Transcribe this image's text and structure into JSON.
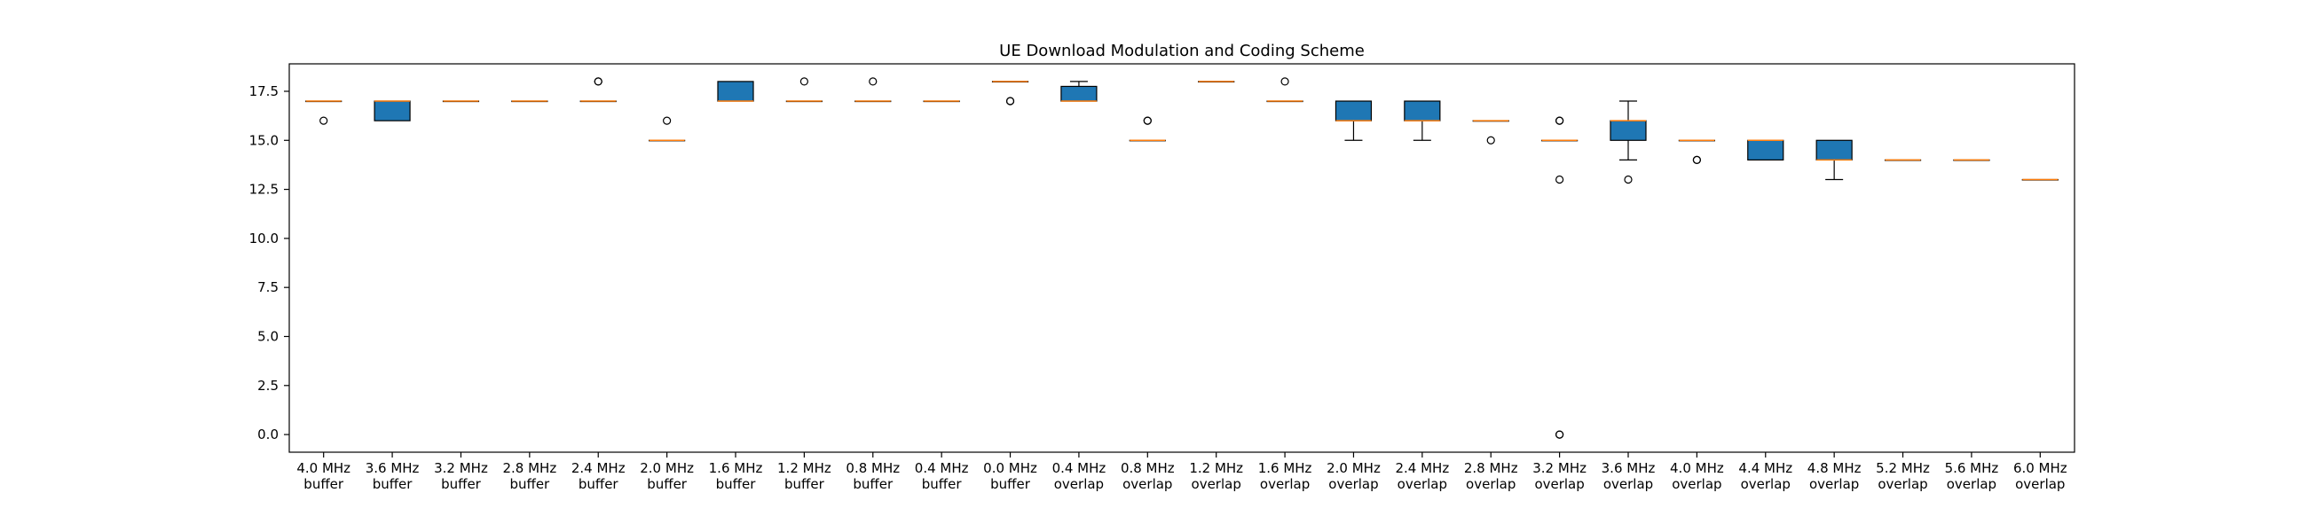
{
  "chart_data": {
    "type": "boxplot",
    "title": "UE Download Modulation and Coding Scheme",
    "xlabel": "",
    "ylabel": "",
    "ylim": [
      -0.9,
      18.9
    ],
    "yticks": [
      0.0,
      2.5,
      5.0,
      7.5,
      10.0,
      12.5,
      15.0,
      17.5
    ],
    "ytick_labels": [
      "0.0",
      "2.5",
      "5.0",
      "7.5",
      "10.0",
      "12.5",
      "15.0",
      "17.5"
    ],
    "grid": false,
    "colors": {
      "box_fill": "#1f77b4",
      "median": "#ff7f0e",
      "edge": "#000000"
    },
    "categories": [
      {
        "line1": "4.0 MHz",
        "line2": "buffer"
      },
      {
        "line1": "3.6 MHz",
        "line2": "buffer"
      },
      {
        "line1": "3.2 MHz",
        "line2": "buffer"
      },
      {
        "line1": "2.8 MHz",
        "line2": "buffer"
      },
      {
        "line1": "2.4 MHz",
        "line2": "buffer"
      },
      {
        "line1": "2.0 MHz",
        "line2": "buffer"
      },
      {
        "line1": "1.6 MHz",
        "line2": "buffer"
      },
      {
        "line1": "1.2 MHz",
        "line2": "buffer"
      },
      {
        "line1": "0.8 MHz",
        "line2": "buffer"
      },
      {
        "line1": "0.4 MHz",
        "line2": "buffer"
      },
      {
        "line1": "0.0 MHz",
        "line2": "buffer"
      },
      {
        "line1": "0.4 MHz",
        "line2": "overlap"
      },
      {
        "line1": "0.8 MHz",
        "line2": "overlap"
      },
      {
        "line1": "1.2 MHz",
        "line2": "overlap"
      },
      {
        "line1": "1.6 MHz",
        "line2": "overlap"
      },
      {
        "line1": "2.0 MHz",
        "line2": "overlap"
      },
      {
        "line1": "2.4 MHz",
        "line2": "overlap"
      },
      {
        "line1": "2.8 MHz",
        "line2": "overlap"
      },
      {
        "line1": "3.2 MHz",
        "line2": "overlap"
      },
      {
        "line1": "3.6 MHz",
        "line2": "overlap"
      },
      {
        "line1": "4.0 MHz",
        "line2": "overlap"
      },
      {
        "line1": "4.4 MHz",
        "line2": "overlap"
      },
      {
        "line1": "4.8 MHz",
        "line2": "overlap"
      },
      {
        "line1": "5.2 MHz",
        "line2": "overlap"
      },
      {
        "line1": "5.6 MHz",
        "line2": "overlap"
      },
      {
        "line1": "6.0 MHz",
        "line2": "overlap"
      }
    ],
    "boxes": [
      {
        "q1": 17,
        "median": 17,
        "q3": 17,
        "whisker_low": 17,
        "whisker_high": 17,
        "outliers": [
          16
        ]
      },
      {
        "q1": 16,
        "median": 17,
        "q3": 17,
        "whisker_low": 16,
        "whisker_high": 17,
        "outliers": []
      },
      {
        "q1": 17,
        "median": 17,
        "q3": 17,
        "whisker_low": 17,
        "whisker_high": 17,
        "outliers": []
      },
      {
        "q1": 17,
        "median": 17,
        "q3": 17,
        "whisker_low": 17,
        "whisker_high": 17,
        "outliers": []
      },
      {
        "q1": 17,
        "median": 17,
        "q3": 17,
        "whisker_low": 17,
        "whisker_high": 17,
        "outliers": [
          18,
          18
        ]
      },
      {
        "q1": 15,
        "median": 15,
        "q3": 15,
        "whisker_low": 15,
        "whisker_high": 15,
        "outliers": [
          16
        ]
      },
      {
        "q1": 17,
        "median": 17,
        "q3": 18,
        "whisker_low": 17,
        "whisker_high": 18,
        "outliers": []
      },
      {
        "q1": 17,
        "median": 17,
        "q3": 17,
        "whisker_low": 17,
        "whisker_high": 17,
        "outliers": [
          18
        ]
      },
      {
        "q1": 17,
        "median": 17,
        "q3": 17,
        "whisker_low": 17,
        "whisker_high": 17,
        "outliers": [
          18
        ]
      },
      {
        "q1": 17,
        "median": 17,
        "q3": 17,
        "whisker_low": 17,
        "whisker_high": 17,
        "outliers": []
      },
      {
        "q1": 18,
        "median": 18,
        "q3": 18,
        "whisker_low": 18,
        "whisker_high": 18,
        "outliers": [
          17,
          17
        ]
      },
      {
        "q1": 17,
        "median": 17,
        "q3": 17.75,
        "whisker_low": 17,
        "whisker_high": 18,
        "outliers": []
      },
      {
        "q1": 15,
        "median": 15,
        "q3": 15,
        "whisker_low": 15,
        "whisker_high": 15,
        "outliers": [
          16,
          16
        ]
      },
      {
        "q1": 18,
        "median": 18,
        "q3": 18,
        "whisker_low": 18,
        "whisker_high": 18,
        "outliers": []
      },
      {
        "q1": 17,
        "median": 17,
        "q3": 17,
        "whisker_low": 17,
        "whisker_high": 17,
        "outliers": [
          18
        ]
      },
      {
        "q1": 16,
        "median": 16,
        "q3": 17,
        "whisker_low": 15,
        "whisker_high": 17,
        "outliers": []
      },
      {
        "q1": 16,
        "median": 16,
        "q3": 17,
        "whisker_low": 15,
        "whisker_high": 17,
        "outliers": []
      },
      {
        "q1": 16,
        "median": 16,
        "q3": 16,
        "whisker_low": 16,
        "whisker_high": 16,
        "outliers": [
          15
        ]
      },
      {
        "q1": 15,
        "median": 15,
        "q3": 15,
        "whisker_low": 15,
        "whisker_high": 15,
        "outliers": [
          16,
          16,
          13,
          0,
          0
        ]
      },
      {
        "q1": 15,
        "median": 16,
        "q3": 16,
        "whisker_low": 14,
        "whisker_high": 17,
        "outliers": [
          13
        ]
      },
      {
        "q1": 15,
        "median": 15,
        "q3": 15,
        "whisker_low": 15,
        "whisker_high": 15,
        "outliers": [
          14,
          14
        ]
      },
      {
        "q1": 14,
        "median": 15,
        "q3": 15,
        "whisker_low": 14,
        "whisker_high": 15,
        "outliers": []
      },
      {
        "q1": 14,
        "median": 14,
        "q3": 15,
        "whisker_low": 13,
        "whisker_high": 15,
        "outliers": []
      },
      {
        "q1": 14,
        "median": 14,
        "q3": 14,
        "whisker_low": 14,
        "whisker_high": 14,
        "outliers": []
      },
      {
        "q1": 14,
        "median": 14,
        "q3": 14,
        "whisker_low": 14,
        "whisker_high": 14,
        "outliers": []
      },
      {
        "q1": 13,
        "median": 13,
        "q3": 13,
        "whisker_low": 13,
        "whisker_high": 13,
        "outliers": []
      }
    ]
  }
}
